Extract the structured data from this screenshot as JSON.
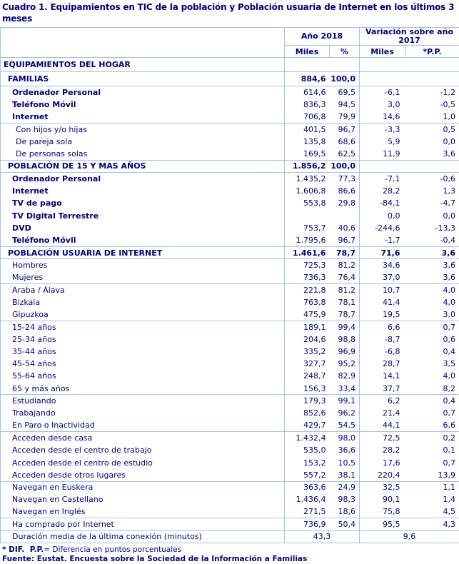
{
  "title": "Cuadro 1. Equipamientos en TIC de la población y Población usuaria de Internet en los últimos 3 meses",
  "table": {
    "header": {
      "group_year": "Año 2018",
      "group_variation": "Variación sobre año 2017",
      "sub_columns": [
        "Miles",
        "%",
        "Miles",
        "*P.P."
      ]
    },
    "rows": [
      {
        "label": "EQUIPAMIENTOS DEL HOGAR",
        "style": "section",
        "indent": 0,
        "sep": false,
        "tall": true,
        "values": [
          "",
          "",
          "",
          ""
        ]
      },
      {
        "label": "FAMILIAS",
        "style": "section",
        "indent": 1,
        "sep": true,
        "tall": true,
        "values": [
          "884,6",
          "100,0",
          "",
          ""
        ]
      },
      {
        "label": "Ordenador Personal",
        "style": "boldlabel",
        "indent": 2,
        "sep": true,
        "values": [
          "614,6",
          "69,5",
          "-6,1",
          "-1,2"
        ]
      },
      {
        "label": "Teléfono Móvil",
        "style": "boldlabel",
        "indent": 2,
        "sep": false,
        "values": [
          "836,3",
          "94,5",
          "3,0",
          "-0,5"
        ]
      },
      {
        "label": "Internet",
        "style": "boldlabel",
        "indent": 2,
        "sep": false,
        "values": [
          "706,8",
          "79,9",
          "14,6",
          "1,0"
        ]
      },
      {
        "label": "Con hijos y/o hijas",
        "style": "normal",
        "indent": 3,
        "sep": true,
        "values": [
          "401,5",
          "96,7",
          "-3,3",
          "0,5"
        ]
      },
      {
        "label": "De pareja sola",
        "style": "normal",
        "indent": 3,
        "sep": false,
        "values": [
          "135,8",
          "68,6",
          "5,9",
          "0,0"
        ]
      },
      {
        "label": "De personas solas",
        "style": "normal",
        "indent": 3,
        "sep": false,
        "values": [
          "169,5",
          "62,5",
          "11,9",
          "3,6"
        ]
      },
      {
        "label": "POBLACIÓN DE 15 Y MAS AÑOS",
        "style": "section",
        "indent": 1,
        "sep": true,
        "values": [
          "1.856,2",
          "100,0",
          "",
          ""
        ]
      },
      {
        "label": "Ordenador Personal",
        "style": "boldlabel",
        "indent": 2,
        "sep": true,
        "values": [
          "1.435,2",
          "77,3",
          "-7,1",
          "-0,6"
        ]
      },
      {
        "label": "Internet",
        "style": "boldlabel",
        "indent": 2,
        "sep": false,
        "values": [
          "1.606,8",
          "86,6",
          "28,2",
          "1,3"
        ]
      },
      {
        "label": "TV de pago",
        "style": "boldlabel",
        "indent": 2,
        "sep": false,
        "values": [
          "553,8",
          "29,8",
          "-84,1",
          "-4,7"
        ]
      },
      {
        "label": "TV Digital Terrestre",
        "style": "boldlabel",
        "indent": 2,
        "sep": false,
        "values": [
          "",
          "",
          "0,0",
          "0,0"
        ]
      },
      {
        "label": "DVD",
        "style": "boldlabel",
        "indent": 2,
        "sep": false,
        "values": [
          "753,7",
          "40,6",
          "-244,6",
          "-13,3"
        ]
      },
      {
        "label": "Teléfono Móvil",
        "style": "boldlabel",
        "indent": 2,
        "sep": false,
        "values": [
          "1.795,6",
          "96,7",
          "-1,7",
          "-0,4"
        ]
      },
      {
        "label": "POBLACIÓN USUARIA DE INTERNET",
        "style": "section",
        "indent": 1,
        "sep": true,
        "values": [
          "1.461,6",
          "78,7",
          "71,6",
          "3,6"
        ]
      },
      {
        "label": "Hombres",
        "style": "normal",
        "indent": 2,
        "sep": true,
        "values": [
          "725,3",
          "81,2",
          "34,6",
          "3,6"
        ]
      },
      {
        "label": "Mujeres",
        "style": "normal",
        "indent": 2,
        "sep": false,
        "values": [
          "736,3",
          "76,4",
          "37,0",
          "3,6"
        ]
      },
      {
        "label": "Araba / Álava",
        "style": "normal",
        "indent": 2,
        "sep": true,
        "values": [
          "221,8",
          "81,2",
          "10,7",
          "4,0"
        ]
      },
      {
        "label": "Bizkaia",
        "style": "normal",
        "indent": 2,
        "sep": false,
        "values": [
          "763,8",
          "78,1",
          "41,4",
          "4,0"
        ]
      },
      {
        "label": "Gipuzkoa",
        "style": "normal",
        "indent": 2,
        "sep": false,
        "values": [
          "475,9",
          "78,7",
          "19,5",
          "3,0"
        ]
      },
      {
        "label": "15-24 años",
        "style": "normal",
        "indent": 2,
        "sep": true,
        "values": [
          "189,1",
          "99,4",
          "6,6",
          "0,7"
        ]
      },
      {
        "label": "25-34 años",
        "style": "normal",
        "indent": 2,
        "sep": false,
        "values": [
          "204,6",
          "98,8",
          "-8,7",
          "0,6"
        ]
      },
      {
        "label": "35-44 años",
        "style": "normal",
        "indent": 2,
        "sep": false,
        "values": [
          "335,2",
          "96,9",
          "-6,8",
          "0,4"
        ]
      },
      {
        "label": "45-54 años",
        "style": "normal",
        "indent": 2,
        "sep": false,
        "values": [
          "327,7",
          "95,2",
          "28,7",
          "3,5"
        ]
      },
      {
        "label": "55-64 años",
        "style": "normal",
        "indent": 2,
        "sep": false,
        "values": [
          "248,7",
          "82,9",
          "14,1",
          "4,0"
        ]
      },
      {
        "label": "65 y más años",
        "style": "normal",
        "indent": 2,
        "sep": false,
        "values": [
          "156,3",
          "33,4",
          "37,7",
          "8,2"
        ]
      },
      {
        "label": "Estudiando",
        "style": "normal",
        "indent": 2,
        "sep": true,
        "values": [
          "179,3",
          "99,1",
          "6,2",
          "0,4"
        ]
      },
      {
        "label": "Trabajando",
        "style": "normal",
        "indent": 2,
        "sep": false,
        "values": [
          "852,6",
          "96,2",
          "21,4",
          "0,7"
        ]
      },
      {
        "label": "En Paro o Inactividad",
        "style": "normal",
        "indent": 2,
        "sep": false,
        "values": [
          "429,7",
          "54,5",
          "44,1",
          "6,6"
        ]
      },
      {
        "label": "Acceden desde casa",
        "style": "normal",
        "indent": 2,
        "sep": true,
        "values": [
          "1.432,4",
          "98,0",
          "72,5",
          "0,2"
        ]
      },
      {
        "label": "Acceden desde el centro de trabajo",
        "style": "normal",
        "indent": 2,
        "sep": false,
        "values": [
          "535,0",
          "36,6",
          "28,2",
          "0,1"
        ]
      },
      {
        "label": "Acceden desde el centro de estudio",
        "style": "normal",
        "indent": 2,
        "sep": false,
        "values": [
          "153,2",
          "10,5",
          "17,6",
          "0,7"
        ]
      },
      {
        "label": "Acceden desde otros lugares",
        "style": "normal",
        "indent": 2,
        "sep": false,
        "values": [
          "557,2",
          "38,1",
          "220,4",
          "13,9"
        ]
      },
      {
        "label": "Navegan en Euskera",
        "style": "normal",
        "indent": 2,
        "sep": true,
        "values": [
          "363,6",
          "24,9",
          "32,5",
          "1,1"
        ]
      },
      {
        "label": "Navegan en Castellano",
        "style": "normal",
        "indent": 2,
        "sep": false,
        "values": [
          "1.436,4",
          "98,3",
          "90,1",
          "1,4"
        ]
      },
      {
        "label": "Navegan en Inglés",
        "style": "normal",
        "indent": 2,
        "sep": false,
        "values": [
          "271,5",
          "18,6",
          "75,8",
          "4,5"
        ]
      },
      {
        "label": "Ha comprado por Internet",
        "style": "normal",
        "indent": 2,
        "sep": true,
        "values": [
          "736,9",
          "50,4",
          "95,5",
          "4,3"
        ]
      },
      {
        "label": "Duración media de la última conexión (minutos)",
        "style": "normal",
        "indent": 2,
        "sep": true,
        "span": true,
        "values": [
          "43,3",
          "9,6"
        ]
      }
    ]
  },
  "footnotes": {
    "definition_bold": "* DIF.  P.P.",
    "definition_rest": "= Diferencia en puntos porcentuales",
    "source": "Fuente: Eustat. Encuesta sobre la Sociedad de la Información a Familias"
  },
  "colors": {
    "text": "#000080",
    "border": "#9fc5e8",
    "background": "#ffffff"
  }
}
